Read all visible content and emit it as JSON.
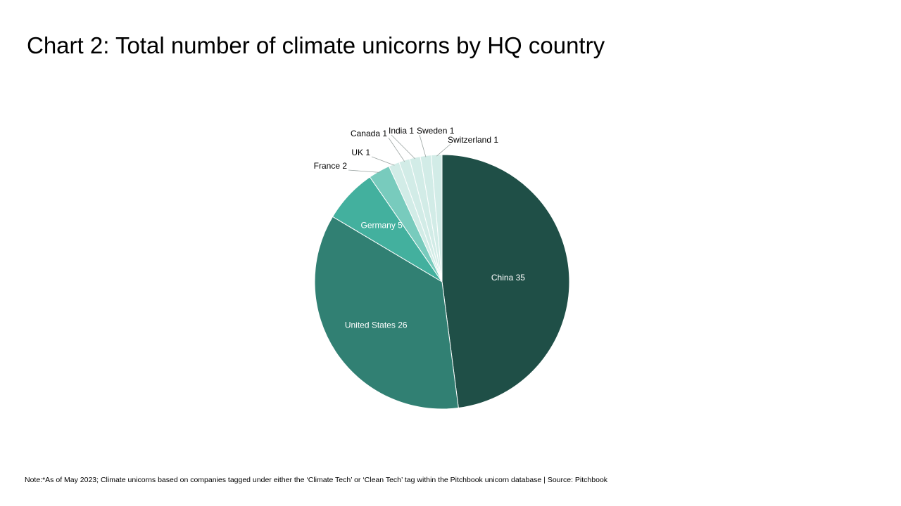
{
  "title": "Chart 2: Total number of climate unicorns by HQ country",
  "note": "Note:*As of May 2023; Climate unicorns based on companies tagged under either the ‘Climate Tech’ or ‘Clean Tech’ tag within the Pitchbook unicorn database | Source: Pitchbook",
  "chart_data": {
    "type": "pie",
    "title": "Chart 2: Total number of climate unicorns by HQ country",
    "categories": [
      "China",
      "United States",
      "Germany",
      "France",
      "UK",
      "Canada",
      "India",
      "Sweden",
      "Switzerland"
    ],
    "values": [
      35,
      26,
      5,
      2,
      1,
      1,
      1,
      1,
      1
    ],
    "labels": [
      "China 35",
      "United States 26",
      "Germany 5",
      "France 2",
      "UK 1",
      "Canada 1",
      "India 1",
      "Sweden 1",
      "Switzerland 1"
    ],
    "colors": [
      "#1f4f47",
      "#318073",
      "#43b09e",
      "#78cbbd",
      "#d2ece7",
      "#d2ece7",
      "#d2ece7",
      "#d2ece7",
      "#d2ece7"
    ],
    "label_colors": [
      "#ffffff",
      "#ffffff",
      "#ffffff",
      "#000000",
      "#000000",
      "#000000",
      "#000000",
      "#000000",
      "#000000"
    ],
    "start": "12 o'clock",
    "direction": "clockwise",
    "legend": "none"
  }
}
